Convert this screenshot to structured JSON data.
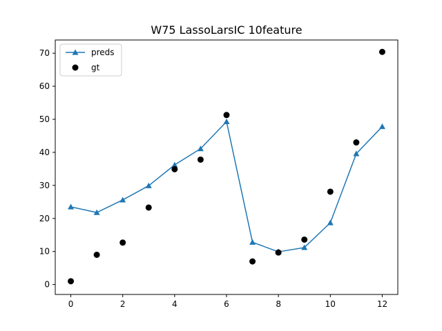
{
  "chart_data": {
    "type": "line",
    "title": "W75 LassoLarsIC 10feature",
    "xlabel": "",
    "ylabel": "",
    "xlim": [
      -0.6,
      12.6
    ],
    "ylim": [
      -3.0,
      74.0
    ],
    "x_ticks": [
      0,
      2,
      4,
      6,
      8,
      10,
      12
    ],
    "y_ticks": [
      0,
      10,
      20,
      30,
      40,
      50,
      60,
      70
    ],
    "grid": false,
    "legend_position": "top-left",
    "x": [
      0,
      1,
      2,
      3,
      4,
      5,
      6,
      7,
      8,
      9,
      10,
      11,
      12
    ],
    "series": [
      {
        "name": "preds",
        "style": "line-with-triangle-markers",
        "color": "#1f77b4",
        "values": [
          23.5,
          21.8,
          25.6,
          29.9,
          36.2,
          41.1,
          49.3,
          12.8,
          9.9,
          11.2,
          18.7,
          39.6,
          47.8
        ]
      },
      {
        "name": "gt",
        "style": "scatter-circle",
        "color": "#000000",
        "values": [
          1.0,
          9.0,
          12.7,
          23.3,
          34.9,
          37.8,
          51.3,
          7.0,
          9.7,
          13.6,
          28.1,
          43.0,
          70.4
        ]
      }
    ]
  }
}
